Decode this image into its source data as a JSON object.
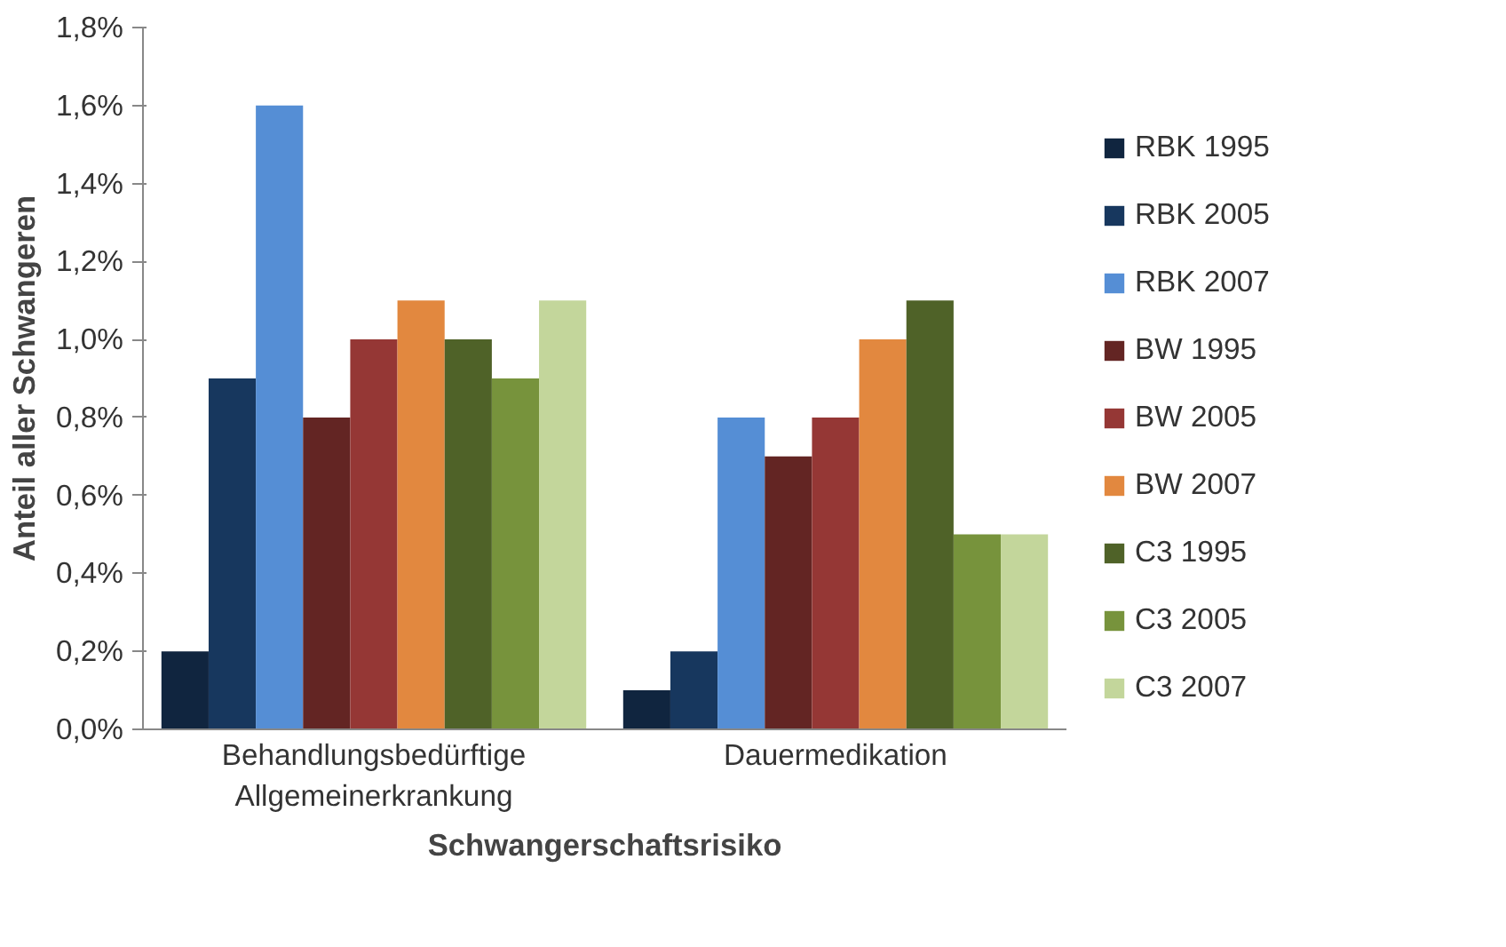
{
  "chart_data": {
    "type": "bar",
    "categories": [
      "Behandlungsbedürftige Allgemeinerkrankung",
      "Dauermedikation"
    ],
    "xlabel": "Schwangerschaftsrisiko",
    "ylabel": "Anteil aller Schwangeren",
    "ylim": [
      0,
      1.8
    ],
    "yticks": [
      {
        "value": 0,
        "label": "0,0%"
      },
      {
        "value": 0.2,
        "label": "0,2%"
      },
      {
        "value": 0.4,
        "label": "0,4%"
      },
      {
        "value": 0.6,
        "label": "0,6%"
      },
      {
        "value": 0.8,
        "label": "0,8%"
      },
      {
        "value": 1.0,
        "label": "1,0%"
      },
      {
        "value": 1.2,
        "label": "1,2%"
      },
      {
        "value": 1.4,
        "label": "1,4%"
      },
      {
        "value": 1.6,
        "label": "1,6%"
      },
      {
        "value": 1.8,
        "label": "1,8%"
      }
    ],
    "grid": false,
    "legend": "right",
    "series": [
      {
        "name": "RBK 1995",
        "color": "#10253f",
        "values": [
          0.2,
          0.1
        ]
      },
      {
        "name": "RBK 2005",
        "color": "#17375e",
        "values": [
          0.9,
          0.2
        ]
      },
      {
        "name": "RBK 2007",
        "color": "#558ed5",
        "values": [
          1.6,
          0.8
        ]
      },
      {
        "name": "BW 1995",
        "color": "#632523",
        "values": [
          0.8,
          0.7
        ]
      },
      {
        "name": "BW 2005",
        "color": "#953735",
        "values": [
          1.0,
          0.8
        ]
      },
      {
        "name": "BW 2007",
        "color": "#e2883f",
        "values": [
          1.1,
          1.0
        ]
      },
      {
        "name": "C3 1995",
        "color": "#4f6228",
        "values": [
          1.0,
          1.1
        ]
      },
      {
        "name": "C3 2005",
        "color": "#77933c",
        "values": [
          0.9,
          0.5
        ]
      },
      {
        "name": "C3 2007",
        "color": "#c3d69b",
        "values": [
          1.1,
          0.5
        ]
      }
    ]
  }
}
